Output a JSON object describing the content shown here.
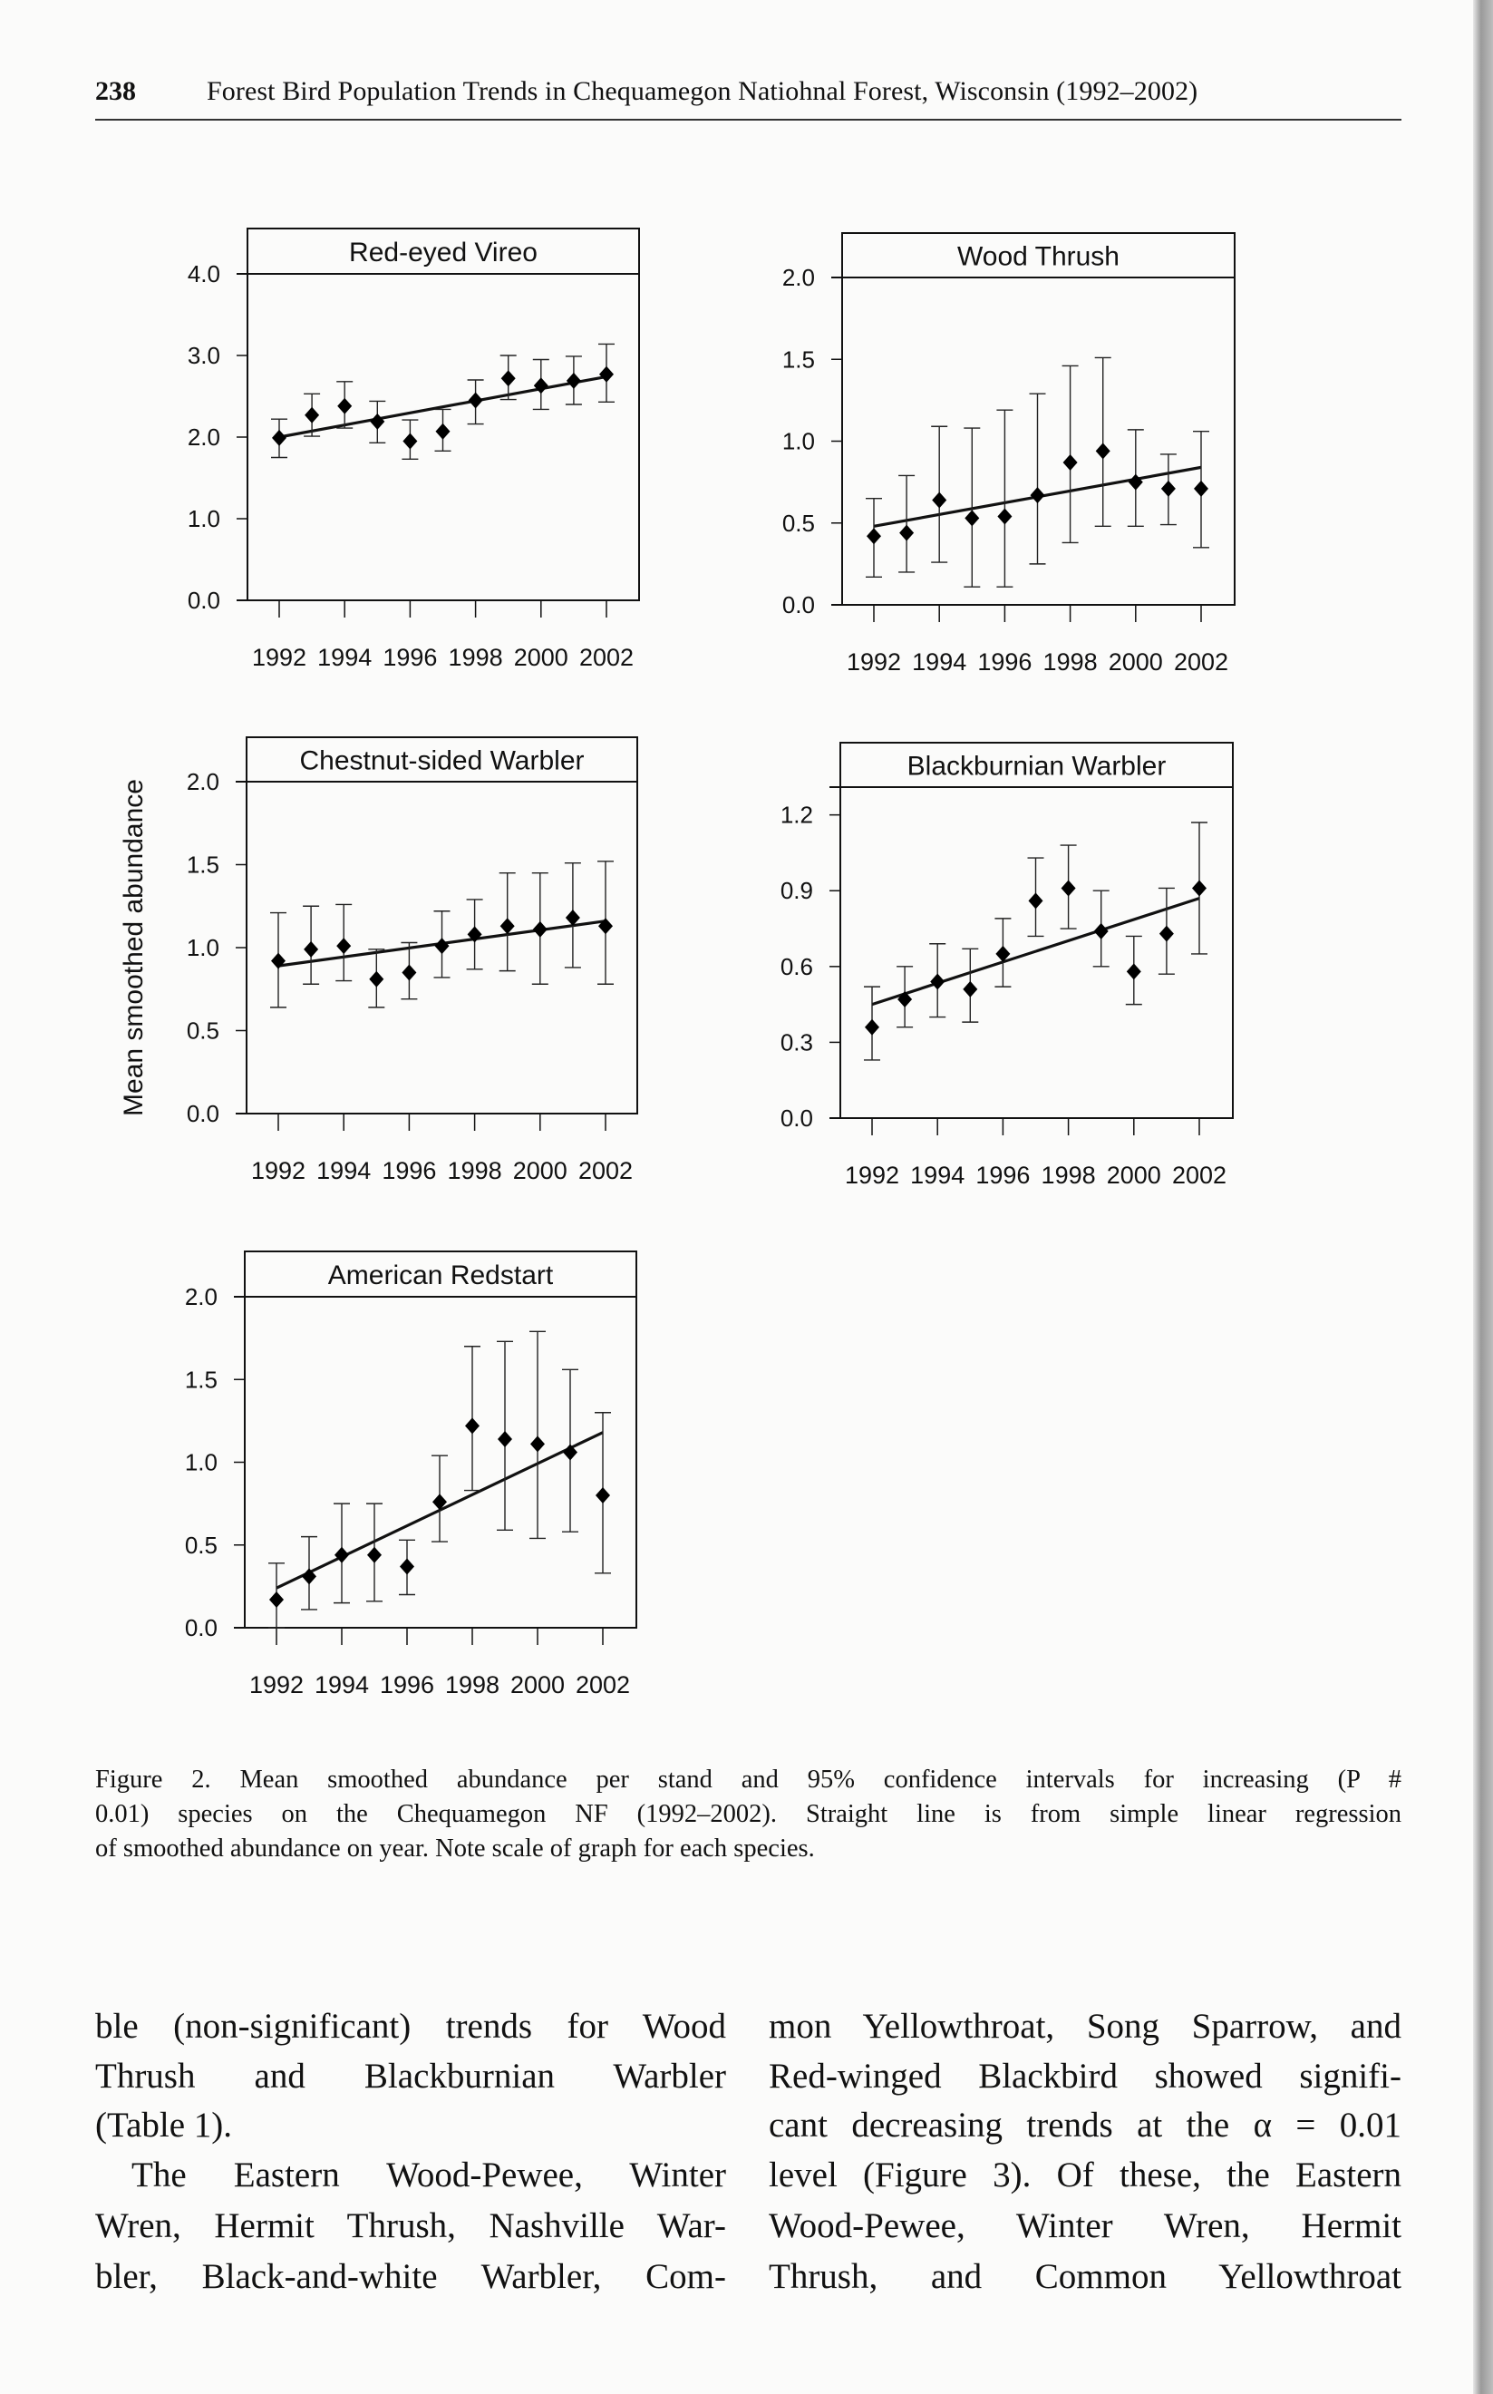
{
  "header": {
    "page_number": "238",
    "running_title": "Forest Bird Population Trends in Chequamegon Natiohnal Forest, Wisconsin (1992–2002)"
  },
  "figure": {
    "y_axis_label": "Mean smoothed abundance",
    "caption_lines": [
      "Figure 2. Mean smoothed abundance per stand and 95% confidence intervals for increasing (P #",
      "0.01) species on the Chequamegon NF (1992–2002). Straight line is from simple linear regression",
      "of smoothed abundance on year. Note scale of graph for each species."
    ]
  },
  "body": {
    "left_column": [
      "ble (non-significant) trends for Wood",
      "Thrush and Blackburnian Warbler",
      "(Table 1).",
      "The Eastern Wood-Pewee, Winter",
      "Wren, Hermit Thrush, Nashville War-",
      "bler, Black-and-white Warbler, Com-"
    ],
    "right_column": [
      "mon Yellowthroat, Song Sparrow, and",
      "Red-winged Blackbird showed signifi-",
      "cant decreasing trends at the α = 0.01",
      "level (Figure 3). Of these, the Eastern",
      "Wood-Pewee, Winter Wren, Hermit",
      "Thrush, and Common Yellowthroat"
    ]
  },
  "chart_data": [
    {
      "type": "scatter",
      "title": "Red-eyed Vireo",
      "x": [
        1992,
        1993,
        1994,
        1995,
        1996,
        1997,
        1998,
        1999,
        2000,
        2001,
        2002
      ],
      "y": [
        1.99,
        2.27,
        2.38,
        2.19,
        1.95,
        2.07,
        2.45,
        2.72,
        2.63,
        2.69,
        2.77
      ],
      "ci_upper": [
        2.22,
        2.53,
        2.68,
        2.44,
        2.21,
        2.34,
        2.7,
        3.0,
        2.95,
        2.99,
        3.14
      ],
      "ci_lower": [
        1.75,
        2.01,
        2.11,
        1.93,
        1.73,
        1.83,
        2.16,
        2.46,
        2.34,
        2.4,
        2.43
      ],
      "trend_line": {
        "x": [
          1992,
          2002
        ],
        "y": [
          2.0,
          2.74
        ]
      },
      "xticks": [
        "1992",
        "1994",
        "1996",
        "1998",
        "2000",
        "2002"
      ],
      "yticks": [
        "0.0",
        "1.0",
        "2.0",
        "3.0",
        "4.0"
      ],
      "ylim": [
        0,
        4.0
      ],
      "xlim": [
        1992,
        2002
      ],
      "grid": false
    },
    {
      "type": "scatter",
      "title": "Wood Thrush",
      "x": [
        1992,
        1993,
        1994,
        1995,
        1996,
        1997,
        1998,
        1999,
        2000,
        2001,
        2002
      ],
      "y": [
        0.42,
        0.44,
        0.64,
        0.53,
        0.54,
        0.67,
        0.87,
        0.94,
        0.75,
        0.71,
        0.71
      ],
      "ci_upper": [
        0.65,
        0.79,
        1.09,
        1.08,
        1.19,
        1.29,
        1.46,
        1.51,
        1.07,
        0.92,
        1.06
      ],
      "ci_lower": [
        0.17,
        0.2,
        0.26,
        0.11,
        0.11,
        0.25,
        0.38,
        0.48,
        0.48,
        0.49,
        0.35
      ],
      "trend_line": {
        "x": [
          1992,
          2002
        ],
        "y": [
          0.48,
          0.84
        ]
      },
      "xticks": [
        "1992",
        "1994",
        "1996",
        "1998",
        "2000",
        "2002"
      ],
      "yticks": [
        "0.0",
        "0.5",
        "1.0",
        "1.5",
        "2.0"
      ],
      "ylim": [
        0,
        2.0
      ],
      "xlim": [
        1992,
        2002
      ],
      "grid": false
    },
    {
      "type": "scatter",
      "title": "Chestnut-sided Warbler",
      "x": [
        1992,
        1993,
        1994,
        1995,
        1996,
        1997,
        1998,
        1999,
        2000,
        2001,
        2002
      ],
      "y": [
        0.92,
        0.99,
        1.01,
        0.81,
        0.85,
        1.01,
        1.08,
        1.13,
        1.11,
        1.18,
        1.13
      ],
      "ci_upper": [
        1.21,
        1.25,
        1.26,
        0.99,
        1.03,
        1.22,
        1.29,
        1.45,
        1.45,
        1.51,
        1.52
      ],
      "ci_lower": [
        0.64,
        0.78,
        0.8,
        0.64,
        0.69,
        0.82,
        0.87,
        0.86,
        0.78,
        0.88,
        0.78
      ],
      "trend_line": {
        "x": [
          1992,
          2002
        ],
        "y": [
          0.89,
          1.16
        ]
      },
      "xticks": [
        "1992",
        "1994",
        "1996",
        "1998",
        "2000",
        "2002"
      ],
      "yticks": [
        "0.0",
        "0.5",
        "1.0",
        "1.5",
        "2.0"
      ],
      "ylim": [
        0,
        2.0
      ],
      "xlim": [
        1992,
        2002
      ],
      "grid": false
    },
    {
      "type": "scatter",
      "title": "Blackburnian Warbler",
      "x": [
        1992,
        1993,
        1994,
        1995,
        1996,
        1997,
        1998,
        1999,
        2000,
        2001,
        2002
      ],
      "y": [
        0.36,
        0.47,
        0.54,
        0.51,
        0.65,
        0.86,
        0.91,
        0.74,
        0.58,
        0.73,
        0.91
      ],
      "ci_upper": [
        0.52,
        0.6,
        0.69,
        0.67,
        0.79,
        1.03,
        1.08,
        0.9,
        0.72,
        0.91,
        1.17
      ],
      "ci_lower": [
        0.23,
        0.36,
        0.4,
        0.38,
        0.52,
        0.72,
        0.75,
        0.6,
        0.45,
        0.57,
        0.65
      ],
      "trend_line": {
        "x": [
          1992,
          2002
        ],
        "y": [
          0.45,
          0.87
        ]
      },
      "xticks": [
        "1992",
        "1994",
        "1996",
        "1998",
        "2000",
        "2002"
      ],
      "yticks": [
        "0.0",
        "0.3",
        "0.6",
        "0.9",
        "1.2"
      ],
      "ylim": [
        0,
        1.31
      ],
      "xlim": [
        1992,
        2002
      ],
      "grid": false
    },
    {
      "type": "scatter",
      "title": "American Redstart",
      "x": [
        1992,
        1993,
        1994,
        1995,
        1996,
        1997,
        1998,
        1999,
        2000,
        2001,
        2002
      ],
      "y": [
        0.17,
        0.31,
        0.44,
        0.44,
        0.37,
        0.76,
        1.22,
        1.14,
        1.11,
        1.06,
        0.8
      ],
      "ci_upper": [
        0.39,
        0.55,
        0.75,
        0.75,
        0.53,
        1.04,
        1.7,
        1.73,
        1.79,
        1.56,
        1.3
      ],
      "ci_lower": [
        0.0,
        0.11,
        0.15,
        0.16,
        0.2,
        0.52,
        0.83,
        0.59,
        0.54,
        0.58,
        0.33
      ],
      "trend_line": {
        "x": [
          1992,
          2002
        ],
        "y": [
          0.24,
          1.18
        ]
      },
      "xticks": [
        "1992",
        "1994",
        "1996",
        "1998",
        "2000",
        "2002"
      ],
      "yticks": [
        "0.0",
        "0.5",
        "1.0",
        "1.5",
        "2.0"
      ],
      "ylim": [
        0,
        2.0
      ],
      "xlim": [
        1992,
        2002
      ],
      "grid": false
    }
  ]
}
